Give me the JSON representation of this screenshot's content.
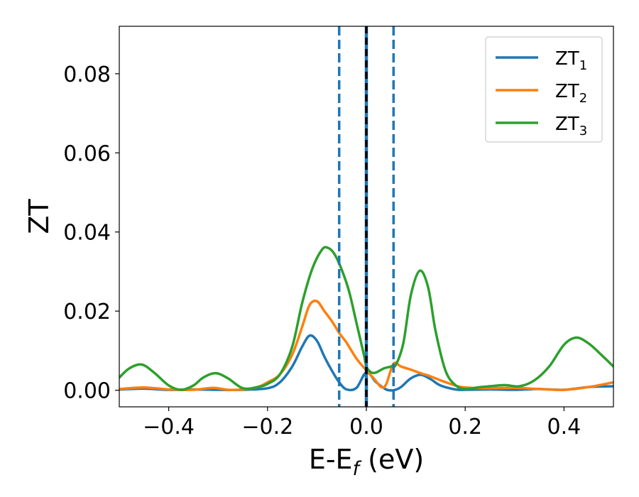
{
  "chart_data": {
    "type": "line",
    "title": "",
    "xlabel_main": "E-E",
    "xlabel_sub": "f",
    "xlabel_unit": " (eV)",
    "ylabel": "ZT",
    "xlim": [
      -0.5,
      0.5
    ],
    "ylim": [
      -0.0042,
      0.092
    ],
    "xticks": [
      -0.4,
      -0.2,
      0.0,
      0.2,
      0.4
    ],
    "xtick_labels": [
      "−0.4",
      "−0.2",
      "0.0",
      "0.2",
      "0.4"
    ],
    "yticks": [
      0.0,
      0.02,
      0.04,
      0.06,
      0.08
    ],
    "ytick_labels": [
      "0.00",
      "0.02",
      "0.04",
      "0.06",
      "0.08"
    ],
    "grid": false,
    "legend_position": "top-right",
    "vlines": [
      {
        "x": -0.055,
        "color": "#1f77b4",
        "style": "dashed"
      },
      {
        "x": 0.055,
        "color": "#1f77b4",
        "style": "dashed"
      },
      {
        "x": 0.0,
        "color": "#000000",
        "style": "dashed-black-over-blue"
      }
    ],
    "series": [
      {
        "name_main": "ZT",
        "name_sub": "1",
        "color": "#1f77b4",
        "x": [
          -0.5,
          -0.45,
          -0.4,
          -0.35,
          -0.3,
          -0.25,
          -0.2,
          -0.175,
          -0.15,
          -0.13,
          -0.115,
          -0.1,
          -0.085,
          -0.07,
          -0.055,
          -0.04,
          -0.02,
          0.0,
          0.02,
          0.04,
          0.055,
          0.07,
          0.09,
          0.11,
          0.13,
          0.15,
          0.18,
          0.2,
          0.25,
          0.3,
          0.35,
          0.4,
          0.45,
          0.5
        ],
        "y": [
          0.0002,
          0.0004,
          0.0001,
          0.0002,
          0.0001,
          0.0001,
          0.0005,
          0.002,
          0.006,
          0.011,
          0.0138,
          0.0125,
          0.0085,
          0.005,
          0.002,
          0.0002,
          0.0006,
          0.0045,
          0.002,
          0.0002,
          0.0,
          0.0008,
          0.003,
          0.0039,
          0.0028,
          0.0012,
          0.0002,
          0.0001,
          0.0002,
          0.0001,
          0.0003,
          0.0001,
          0.0008,
          0.001
        ]
      },
      {
        "name_main": "ZT",
        "name_sub": "2",
        "color": "#ff7f0e",
        "x": [
          -0.5,
          -0.45,
          -0.4,
          -0.35,
          -0.31,
          -0.28,
          -0.25,
          -0.22,
          -0.2,
          -0.175,
          -0.15,
          -0.13,
          -0.115,
          -0.1,
          -0.085,
          -0.07,
          -0.055,
          -0.04,
          -0.02,
          0.0,
          0.015,
          0.03,
          0.04,
          0.055,
          0.07,
          0.09,
          0.11,
          0.13,
          0.15,
          0.18,
          0.2,
          0.25,
          0.3,
          0.35,
          0.4,
          0.45,
          0.5
        ],
        "y": [
          0.0003,
          0.0007,
          0.0002,
          0.0001,
          0.0006,
          0.0001,
          0.0002,
          0.0008,
          0.002,
          0.004,
          0.009,
          0.016,
          0.0215,
          0.0225,
          0.02,
          0.0175,
          0.0145,
          0.012,
          0.008,
          0.005,
          0.003,
          0.0008,
          0.0015,
          0.0067,
          0.006,
          0.0052,
          0.0043,
          0.0035,
          0.0025,
          0.0012,
          0.0007,
          0.0005,
          0.0006,
          0.0003,
          0.0001,
          0.0008,
          0.002
        ]
      },
      {
        "name_main": "ZT",
        "name_sub": "3",
        "color": "#2ca02c",
        "x": [
          -0.5,
          -0.48,
          -0.455,
          -0.43,
          -0.4,
          -0.375,
          -0.35,
          -0.33,
          -0.305,
          -0.28,
          -0.25,
          -0.22,
          -0.2,
          -0.175,
          -0.15,
          -0.13,
          -0.11,
          -0.09,
          -0.078,
          -0.065,
          -0.05,
          -0.035,
          -0.02,
          -0.005,
          0.0,
          0.01,
          0.02,
          0.035,
          0.05,
          0.06,
          0.075,
          0.09,
          0.108,
          0.125,
          0.14,
          0.16,
          0.18,
          0.2,
          0.225,
          0.25,
          0.28,
          0.31,
          0.34,
          0.37,
          0.4,
          0.425,
          0.45,
          0.475,
          0.5
        ],
        "y": [
          0.0032,
          0.0055,
          0.0065,
          0.0045,
          0.0012,
          0.0001,
          0.0012,
          0.0032,
          0.0043,
          0.003,
          0.0005,
          0.0008,
          0.0016,
          0.004,
          0.011,
          0.022,
          0.0305,
          0.0355,
          0.036,
          0.0345,
          0.0305,
          0.025,
          0.017,
          0.009,
          0.006,
          0.0045,
          0.0045,
          0.0055,
          0.006,
          0.0065,
          0.012,
          0.024,
          0.0302,
          0.026,
          0.015,
          0.005,
          0.0013,
          0.0003,
          0.0007,
          0.001,
          0.0013,
          0.001,
          0.0025,
          0.006,
          0.0115,
          0.0133,
          0.0118,
          0.009,
          0.006
        ]
      }
    ]
  }
}
